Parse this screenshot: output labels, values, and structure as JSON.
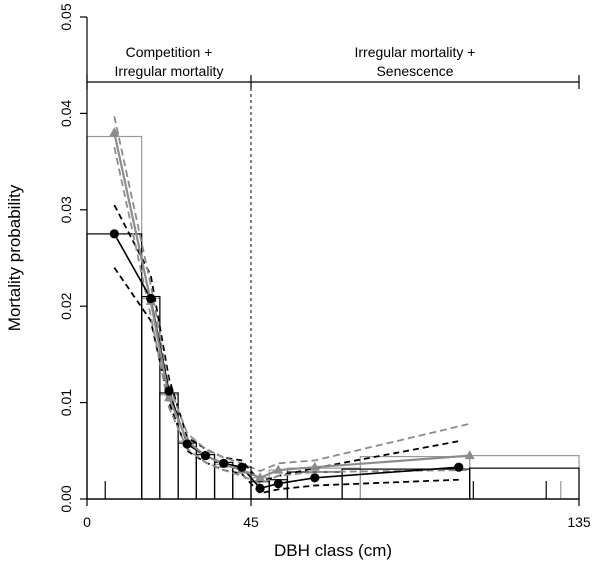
{
  "chart_data": {
    "type": "line",
    "xlabel": "DBH class (cm)",
    "ylabel": "Mortality probability",
    "xlim": [
      0,
      135
    ],
    "ylim": [
      0,
      0.05
    ],
    "x_ticks": [
      "0",
      "45",
      "135"
    ],
    "x_tick_values": [
      0,
      45,
      135
    ],
    "y_ticks": [
      "0.00",
      "0.01",
      "0.02",
      "0.03",
      "0.04",
      "0.05"
    ],
    "y_tick_values": [
      0,
      0.01,
      0.02,
      0.03,
      0.04,
      0.05
    ],
    "regions": [
      {
        "lines": [
          "Competition +",
          "Irregular mortality"
        ],
        "x_range": [
          0,
          45
        ]
      },
      {
        "lines": [
          "Irregular mortality +",
          "Senescence"
        ],
        "x_range": [
          45,
          135
        ]
      }
    ],
    "divider_x": 45,
    "histograms": [
      {
        "name": "black",
        "color": "#000000",
        "bins": [
          [
            0,
            15,
            0.0275
          ],
          [
            15,
            20,
            0.021
          ],
          [
            20,
            25,
            0.011
          ],
          [
            25,
            30,
            0.0058
          ],
          [
            30,
            35,
            0.0046
          ],
          [
            35,
            40,
            0.0038
          ],
          [
            40,
            45,
            0.0033
          ],
          [
            45,
            50,
            0.0018
          ],
          [
            50,
            55,
            0.002
          ],
          [
            55,
            70,
            0.0028
          ],
          [
            70,
            105,
            0.0031
          ],
          [
            105,
            135,
            0.0032
          ]
        ]
      },
      {
        "name": "grey",
        "color": "#999999",
        "bins": [
          [
            0,
            15,
            0.0376
          ],
          [
            15,
            20,
            0.0208
          ],
          [
            20,
            25,
            0.0108
          ],
          [
            25,
            30,
            0.006
          ],
          [
            30,
            35,
            0.0048
          ],
          [
            35,
            40,
            0.0036
          ],
          [
            40,
            45,
            0.0028
          ],
          [
            45,
            50,
            0.0022
          ],
          [
            50,
            55,
            0.003
          ],
          [
            55,
            75,
            0.0032
          ],
          [
            75,
            105,
            0.0044
          ],
          [
            105,
            135,
            0.0045
          ]
        ]
      }
    ],
    "series": [
      {
        "name": "black",
        "color": "#000000",
        "marker": "circle",
        "x": [
          7.5,
          17.5,
          22.5,
          27.5,
          32.5,
          37.5,
          42.5,
          47.5,
          52.5,
          62.5,
          102
        ],
        "y": [
          0.0275,
          0.0208,
          0.0112,
          0.0057,
          0.0045,
          0.0037,
          0.0033,
          0.0011,
          0.0016,
          0.0022,
          0.0033
        ],
        "ci_lower": [
          0.024,
          0.0185,
          0.01,
          0.005,
          0.0038,
          0.003,
          0.0026,
          0.0006,
          0.001,
          0.0014,
          0.002
        ],
        "ci_upper": [
          0.0305,
          0.0232,
          0.0125,
          0.0064,
          0.0052,
          0.0043,
          0.004,
          0.0018,
          0.0024,
          0.0032,
          0.006
        ]
      },
      {
        "name": "grey",
        "color": "#8c8c8c",
        "marker": "triangle",
        "x": [
          7.5,
          17.5,
          22.5,
          27.5,
          32.5,
          37.5,
          42.5,
          47.5,
          52.5,
          62.5,
          105
        ],
        "y": [
          0.038,
          0.0205,
          0.0105,
          0.006,
          0.0045,
          0.0036,
          0.003,
          0.0022,
          0.003,
          0.0033,
          0.0045
        ],
        "ci_lower": [
          0.0365,
          0.019,
          0.0095,
          0.0052,
          0.0038,
          0.003,
          0.0024,
          0.0016,
          0.0024,
          0.0028,
          0.003
        ],
        "ci_upper": [
          0.0397,
          0.0222,
          0.0118,
          0.0068,
          0.0052,
          0.0043,
          0.0037,
          0.0029,
          0.0037,
          0.004,
          0.0078
        ]
      }
    ],
    "rug": [
      5,
      106,
      126,
      130
    ]
  }
}
